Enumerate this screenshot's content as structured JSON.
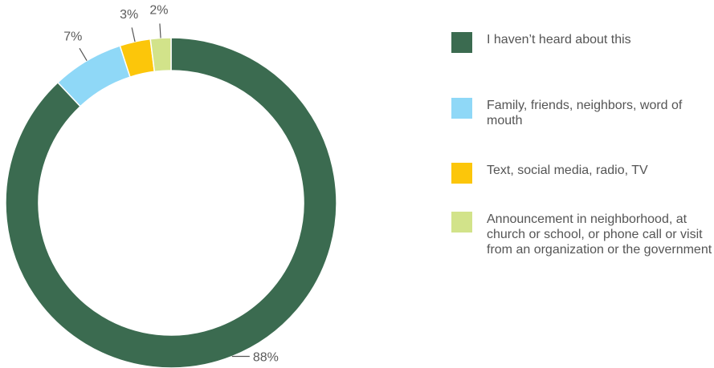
{
  "chart_data": {
    "type": "pie",
    "donut": true,
    "categories": [
      "I haven’t heard about this",
      "Family, friends, neighbors, word of mouth",
      "Text, social media, radio, TV",
      "Announcement in neighborhood, at church or school, or phone call or visit from an organization or the government"
    ],
    "values": [
      88,
      7,
      3,
      2
    ],
    "value_labels": [
      "88%",
      "7%",
      "3%",
      "2%"
    ],
    "colors": [
      "#3b6b50",
      "#8fd8f7",
      "#fcc60a",
      "#d2e38a"
    ],
    "legend_position": "right"
  }
}
